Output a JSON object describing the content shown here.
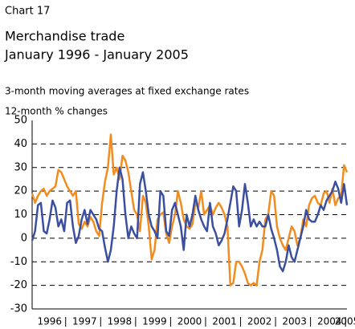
{
  "chart_data": {
    "type": "line",
    "label": "Chart 17",
    "title": "Merchandise trade",
    "subtitle": "January 1996 - January 2005",
    "note": "3-month moving averages at fixed exchange rates",
    "y_label": "12-month % changes",
    "categories": [
      null,
      null,
      null,
      null,
      null,
      null,
      "1996",
      null,
      null,
      null,
      null,
      null,
      null,
      null,
      null,
      null,
      null,
      null,
      "1997",
      null,
      null,
      null,
      null,
      null,
      null,
      null,
      null,
      null,
      null,
      null,
      "1998",
      null,
      null,
      null,
      null,
      null,
      null,
      null,
      null,
      null,
      null,
      null,
      "1999",
      null,
      null,
      null,
      null,
      null,
      null,
      null,
      null,
      null,
      null,
      null,
      "2000",
      null,
      null,
      null,
      null,
      null,
      null,
      null,
      null,
      null,
      null,
      null,
      "2001",
      null,
      null,
      null,
      null,
      null,
      null,
      null,
      null,
      null,
      null,
      null,
      "2002",
      null,
      null,
      null,
      null,
      null,
      null,
      null,
      null,
      null,
      null,
      null,
      "2003",
      null,
      null,
      null,
      null,
      null,
      null,
      null,
      null,
      null,
      null,
      null,
      "2004",
      null,
      null,
      null,
      null,
      null,
      "2005"
    ],
    "series": [
      {
        "color": "#f28c1e",
        "values": [
          19,
          15,
          18,
          20,
          21,
          18,
          20,
          21,
          22,
          29,
          28,
          25,
          22,
          20,
          18,
          20,
          6,
          4,
          7,
          5,
          9,
          7,
          3,
          1,
          15,
          24,
          30,
          44,
          27,
          30,
          25,
          35,
          33,
          28,
          20,
          12,
          10,
          3,
          18,
          15,
          5,
          -9,
          -5,
          8,
          10,
          11,
          2,
          -2,
          5,
          10,
          20,
          15,
          8,
          5,
          4,
          6,
          15,
          13,
          20,
          10,
          12,
          14,
          10,
          13,
          15,
          13,
          10,
          5,
          -20,
          -19,
          -10,
          -10,
          -12,
          -15,
          -19,
          -20,
          -19,
          -20,
          -10,
          -5,
          8,
          10,
          20,
          18,
          5,
          0,
          -3,
          -5,
          0,
          5,
          3,
          -3,
          0,
          8,
          5,
          14,
          17,
          18,
          15,
          14,
          19,
          20,
          15,
          21,
          14,
          17,
          18,
          31,
          28
        ]
      },
      {
        "color": "#3a4fa0",
        "values": [
          -1,
          3,
          14,
          15,
          3,
          2,
          8,
          16,
          13,
          5,
          8,
          3,
          15,
          16,
          5,
          -2,
          1,
          8,
          12,
          6,
          12,
          10,
          8,
          4,
          3,
          -4,
          -10,
          -5,
          5,
          20,
          30,
          25,
          10,
          0,
          5,
          2,
          0,
          23,
          28,
          20,
          10,
          5,
          3,
          0,
          20,
          18,
          3,
          1,
          12,
          15,
          10,
          5,
          -5,
          10,
          5,
          10,
          18,
          12,
          8,
          5,
          3,
          15,
          5,
          2,
          -3,
          -1,
          2,
          8,
          15,
          22,
          20,
          5,
          12,
          23,
          15,
          5,
          8,
          5,
          7,
          5,
          5,
          10,
          4,
          0,
          -5,
          -12,
          -14,
          -10,
          -3,
          -8,
          -10,
          -5,
          0,
          5,
          12,
          8,
          7,
          7,
          10,
          14,
          12,
          16,
          18,
          20,
          24,
          21,
          15,
          23,
          14
        ]
      }
    ],
    "ylim": [
      -30,
      50
    ],
    "yticks": [
      -30,
      -20,
      -10,
      0,
      10,
      20,
      30,
      40,
      50
    ],
    "grid": true
  }
}
